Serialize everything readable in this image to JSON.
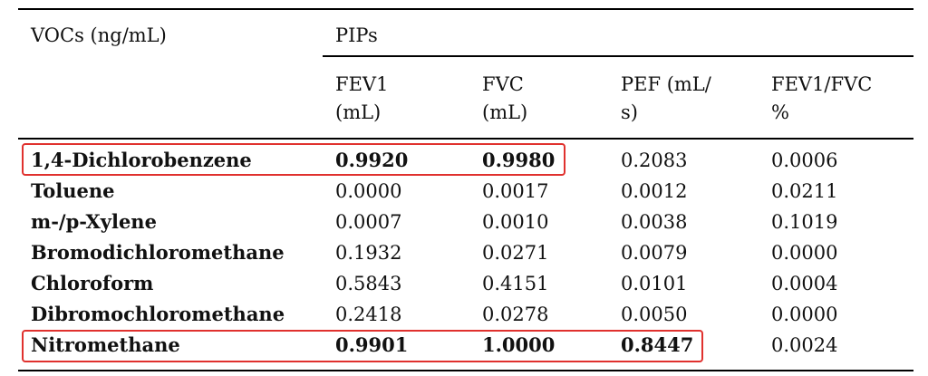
{
  "header": {
    "col0": "VOCs (ng/mL)",
    "group": "PIPs",
    "cols": [
      {
        "line1": "FEV1",
        "line2": "(mL)"
      },
      {
        "line1": "FVC",
        "line2": "(mL)"
      },
      {
        "line1": "PEF (mL/",
        "line2": "s)"
      },
      {
        "line1": "FEV1/FVC",
        "line2": "%"
      }
    ]
  },
  "rows": [
    {
      "name": "1,4-Dichlorobenzene",
      "values": [
        "0.9920",
        "0.9980",
        "0.2083",
        "0.0006"
      ],
      "bold_values": [
        true,
        true,
        false,
        false
      ]
    },
    {
      "name": "Toluene",
      "values": [
        "0.0000",
        "0.0017",
        "0.0012",
        "0.0211"
      ],
      "bold_values": [
        false,
        false,
        false,
        false
      ]
    },
    {
      "name": "m-/p-Xylene",
      "values": [
        "0.0007",
        "0.0010",
        "0.0038",
        "0.1019"
      ],
      "bold_values": [
        false,
        false,
        false,
        false
      ]
    },
    {
      "name": "Bromodichloromethane",
      "values": [
        "0.1932",
        "0.0271",
        "0.0079",
        "0.0000"
      ],
      "bold_values": [
        false,
        false,
        false,
        false
      ]
    },
    {
      "name": "Chloroform",
      "values": [
        "0.5843",
        "0.4151",
        "0.0101",
        "0.0004"
      ],
      "bold_values": [
        false,
        false,
        false,
        false
      ]
    },
    {
      "name": "Dibromochloromethane",
      "values": [
        "0.2418",
        "0.0278",
        "0.0050",
        "0.0000"
      ],
      "bold_values": [
        false,
        false,
        false,
        false
      ]
    },
    {
      "name": "Nitromethane",
      "values": [
        "0.9901",
        "1.0000",
        "0.8447",
        "0.0024"
      ],
      "bold_values": [
        true,
        true,
        true,
        false
      ]
    }
  ],
  "colors": {
    "highlight": "#e0312e",
    "text": "#111111"
  }
}
